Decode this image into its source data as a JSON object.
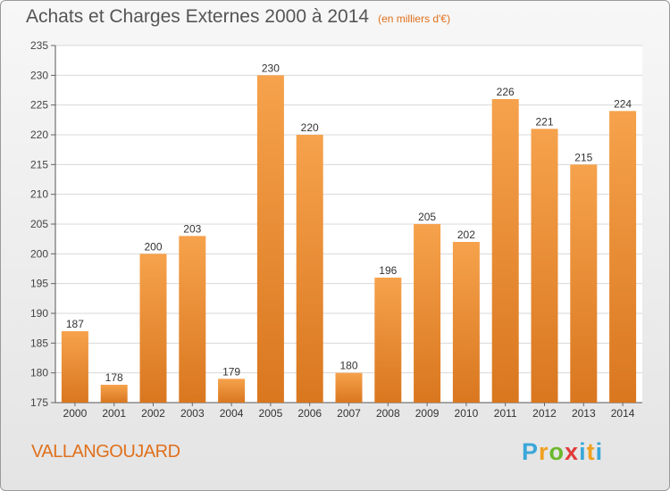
{
  "header": {
    "title": "Achats et Charges Externes 2000 à 2014",
    "unit": "(en milliers d'€)"
  },
  "footer": {
    "place": "VALLANGOUJARD",
    "logo": "Proxiti"
  },
  "colors": {
    "bar_light": "#f6a24c",
    "bar_dark": "#d9771f",
    "text_accent": "#e0701c"
  },
  "chart_data": {
    "type": "bar",
    "categories": [
      "2000",
      "2001",
      "2002",
      "2003",
      "2004",
      "2005",
      "2006",
      "2007",
      "2008",
      "2009",
      "2010",
      "2011",
      "2012",
      "2013",
      "2014"
    ],
    "values": [
      187,
      178,
      200,
      203,
      179,
      230,
      220,
      180,
      196,
      205,
      202,
      226,
      221,
      215,
      224
    ],
    "ylim": [
      175,
      235
    ],
    "yticks": [
      175,
      180,
      185,
      190,
      195,
      200,
      205,
      210,
      215,
      220,
      225,
      230,
      235
    ],
    "grid": true
  }
}
